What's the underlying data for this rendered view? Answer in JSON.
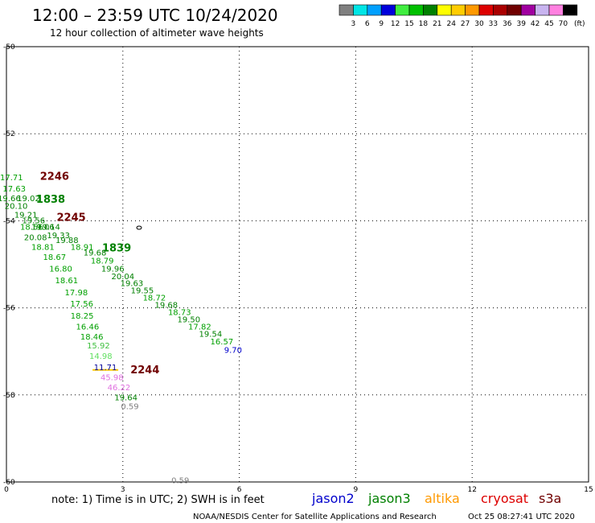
{
  "header": {
    "title": "12:00 – 23:59 UTC 10/24/2020",
    "subtitle": "12 hour collection of altimeter wave heights"
  },
  "legend": {
    "unit": "(ft)",
    "colors": [
      "#808080",
      "#00e6e6",
      "#00a0ff",
      "#0000dc",
      "#40ee40",
      "#00c000",
      "#008000",
      "#ffff00",
      "#ffcc00",
      "#ff9900",
      "#dd0000",
      "#aa0000",
      "#700000",
      "#a000a0",
      "#c8b4f0",
      "#ff80e0",
      "#000000"
    ],
    "labels": [
      "3",
      "6",
      "9",
      "12",
      "15",
      "18",
      "21",
      "24",
      "27",
      "30",
      "33",
      "36",
      "39",
      "42",
      "45",
      "70"
    ]
  },
  "axes": {
    "x_ticks": [
      "0",
      "3",
      "6",
      "9",
      "12",
      "15"
    ],
    "y_ticks": [
      "-50",
      "-52",
      "-54",
      "-56",
      "-58",
      "-60"
    ]
  },
  "observations": [
    {
      "text": "17.71",
      "lon": 0.13,
      "lat": -53.0,
      "color": "#00a000"
    },
    {
      "text": "17.63",
      "lon": 0.2,
      "lat": -53.26,
      "color": "#00a000"
    },
    {
      "text": "19.66",
      "lon": 0.07,
      "lat": -53.48,
      "color": "#008000"
    },
    {
      "text": "19.02",
      "lon": 0.57,
      "lat": -53.48,
      "color": "#008000"
    },
    {
      "text": "20.10",
      "lon": 0.25,
      "lat": -53.66,
      "color": "#008000"
    },
    {
      "text": "19.21",
      "lon": 0.5,
      "lat": -53.86,
      "color": "#008000"
    },
    {
      "text": "19.56",
      "lon": 0.7,
      "lat": -53.99,
      "color": "#008000"
    },
    {
      "text": "18.56",
      "lon": 0.65,
      "lat": -54.14,
      "color": "#00a000"
    },
    {
      "text": "19.06",
      "lon": 0.94,
      "lat": -54.14,
      "color": "#008000"
    },
    {
      "text": "19.14",
      "lon": 1.09,
      "lat": -54.14,
      "color": "#008000"
    },
    {
      "text": "19.33",
      "lon": 1.34,
      "lat": -54.33,
      "color": "#008000"
    },
    {
      "text": "20.08",
      "lon": 0.75,
      "lat": -54.38,
      "color": "#008000"
    },
    {
      "text": "19.88",
      "lon": 1.56,
      "lat": -54.45,
      "color": "#008000"
    },
    {
      "text": "18.81",
      "lon": 0.94,
      "lat": -54.6,
      "color": "#00a000"
    },
    {
      "text": "18.91",
      "lon": 1.95,
      "lat": -54.6,
      "color": "#00a000"
    },
    {
      "text": "19.68",
      "lon": 2.28,
      "lat": -54.73,
      "color": "#008000"
    },
    {
      "text": "18.67",
      "lon": 1.24,
      "lat": -54.83,
      "color": "#00a000"
    },
    {
      "text": "18.79",
      "lon": 2.47,
      "lat": -54.92,
      "color": "#00a000"
    },
    {
      "text": "16.80",
      "lon": 1.4,
      "lat": -55.1,
      "color": "#00a000"
    },
    {
      "text": "19.96",
      "lon": 2.74,
      "lat": -55.1,
      "color": "#008000"
    },
    {
      "text": "20.04",
      "lon": 3.0,
      "lat": -55.28,
      "color": "#008000"
    },
    {
      "text": "18.61",
      "lon": 1.55,
      "lat": -55.37,
      "color": "#00a000"
    },
    {
      "text": "19.63",
      "lon": 3.23,
      "lat": -55.43,
      "color": "#008000"
    },
    {
      "text": "19.55",
      "lon": 3.5,
      "lat": -55.6,
      "color": "#008000"
    },
    {
      "text": "17.98",
      "lon": 1.8,
      "lat": -55.65,
      "color": "#00a000"
    },
    {
      "text": "18.72",
      "lon": 3.81,
      "lat": -55.77,
      "color": "#00a000"
    },
    {
      "text": "17.56",
      "lon": 1.94,
      "lat": -55.91,
      "color": "#00a000"
    },
    {
      "text": "19.68",
      "lon": 4.12,
      "lat": -55.93,
      "color": "#008000"
    },
    {
      "text": "18.73",
      "lon": 4.46,
      "lat": -56.1,
      "color": "#00a000"
    },
    {
      "text": "18.25",
      "lon": 1.95,
      "lat": -56.18,
      "color": "#00a000"
    },
    {
      "text": "19.50",
      "lon": 4.7,
      "lat": -56.27,
      "color": "#008000"
    },
    {
      "text": "16.46",
      "lon": 2.09,
      "lat": -56.43,
      "color": "#00a000"
    },
    {
      "text": "17.82",
      "lon": 4.98,
      "lat": -56.43,
      "color": "#00a000"
    },
    {
      "text": "19.54",
      "lon": 5.26,
      "lat": -56.6,
      "color": "#008000"
    },
    {
      "text": "18.46",
      "lon": 2.2,
      "lat": -56.66,
      "color": "#00a000"
    },
    {
      "text": "16.57",
      "lon": 5.55,
      "lat": -56.77,
      "color": "#00a000"
    },
    {
      "text": "15.92",
      "lon": 2.37,
      "lat": -56.87,
      "color": "#40c040"
    },
    {
      "text": "9.70",
      "lon": 5.84,
      "lat": -56.97,
      "color": "#0000cc"
    },
    {
      "text": "14.98",
      "lon": 2.43,
      "lat": -57.11,
      "color": "#60e060"
    },
    {
      "text": "11.71",
      "lon": 2.55,
      "lat": -57.37,
      "color": "#000099"
    },
    {
      "text": "45.98",
      "lon": 2.72,
      "lat": -57.6,
      "color": "#e070e0"
    },
    {
      "text": "46.22",
      "lon": 2.9,
      "lat": -57.83,
      "color": "#e070e0"
    },
    {
      "text": "19.64",
      "lon": 3.08,
      "lat": -58.06,
      "color": "#008000"
    },
    {
      "text": "0.59",
      "lon": 3.18,
      "lat": -58.26,
      "color": "#808080"
    },
    {
      "text": "0.59",
      "lon": 4.48,
      "lat": -59.96,
      "color": "#808080"
    }
  ],
  "time_labels": [
    {
      "text": "2246",
      "lon": 1.24,
      "lat": -52.98,
      "color": "#700000"
    },
    {
      "text": "1838",
      "lon": 1.14,
      "lat": -53.5,
      "color": "#008000"
    },
    {
      "text": "2245",
      "lon": 1.67,
      "lat": -53.92,
      "color": "#700000"
    },
    {
      "text": "1839",
      "lon": 2.84,
      "lat": -54.62,
      "color": "#008000"
    },
    {
      "text": "2244",
      "lon": 3.57,
      "lat": -57.42,
      "color": "#700000"
    }
  ],
  "footer": {
    "note": "note:  1) Time is in UTC;  2) SWH is in feet",
    "satellites": [
      {
        "name": "jason2",
        "color": "#0000cc"
      },
      {
        "name": "jason3",
        "color": "#008000"
      },
      {
        "name": "altika",
        "color": "#ff9900"
      },
      {
        "name": "cryosat",
        "color": "#dd0000"
      },
      {
        "name": "s3a",
        "color": "#700000"
      }
    ],
    "credit": "NOAA/NESDIS Center for Satellite Applications and Research",
    "timestamp": "Oct 25 08:27:41 UTC 2020"
  }
}
